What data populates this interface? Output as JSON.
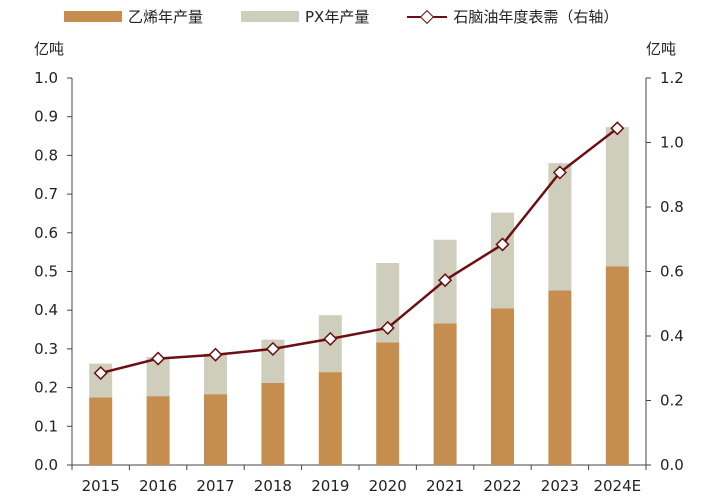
{
  "chart_data": {
    "type": "bar",
    "stacked": true,
    "categories": [
      "2015",
      "2016",
      "2017",
      "2018",
      "2019",
      "2020",
      "2021",
      "2022",
      "2023",
      "2024E"
    ],
    "series": [
      {
        "name": "乙烯年产量",
        "axis": "left",
        "color": "#c68e4e",
        "values": [
          0.175,
          0.178,
          0.183,
          0.212,
          0.24,
          0.317,
          0.366,
          0.405,
          0.451,
          0.513
        ]
      },
      {
        "name": "PX年产量",
        "axis": "left",
        "color": "#cfcdbc",
        "values": [
          0.087,
          0.101,
          0.105,
          0.112,
          0.147,
          0.205,
          0.216,
          0.247,
          0.329,
          0.36
        ]
      },
      {
        "name": "石脑油年度表需（右轴）",
        "type": "line",
        "axis": "right",
        "color": "#6b0f12",
        "values": [
          0.285,
          0.33,
          0.342,
          0.36,
          0.391,
          0.425,
          0.573,
          0.684,
          0.907,
          1.044
        ]
      }
    ],
    "yleft": {
      "label": "亿吨",
      "lim": [
        0,
        1.0
      ],
      "ticks": [
        "0.0",
        "0.1",
        "0.2",
        "0.3",
        "0.4",
        "0.5",
        "0.6",
        "0.7",
        "0.8",
        "0.9",
        "1.0"
      ]
    },
    "yright": {
      "label": "亿吨",
      "lim": [
        0,
        1.2
      ],
      "ticks": [
        "0.0",
        "0.2",
        "0.4",
        "0.6",
        "0.8",
        "1.0",
        "1.2"
      ]
    },
    "grid": false,
    "legend": "top"
  }
}
